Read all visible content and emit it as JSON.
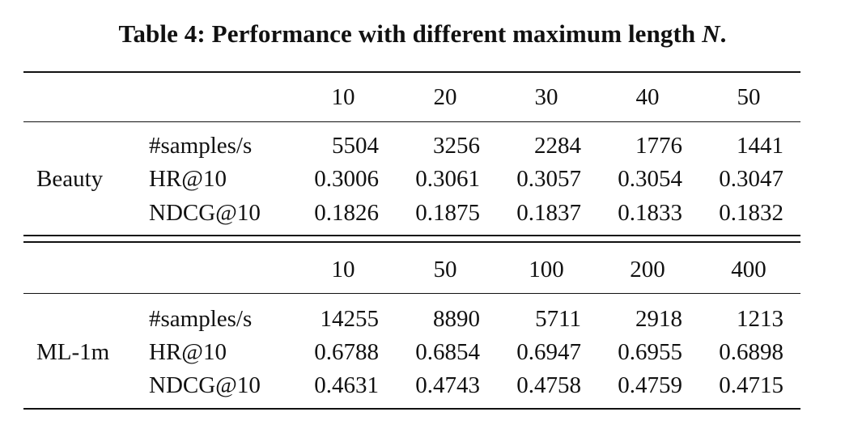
{
  "caption": {
    "prefix": "Table 4: Performance with different maximum length",
    "variable": "N",
    "suffix": "."
  },
  "sections": [
    {
      "dataset": "Beauty",
      "lengths": [
        "10",
        "20",
        "30",
        "40",
        "50"
      ],
      "rows": [
        {
          "metric": "#samples/s",
          "values": [
            "5504",
            "3256",
            "2284",
            "1776",
            "1441"
          ]
        },
        {
          "metric": "HR@10",
          "values": [
            "0.3006",
            "0.3061",
            "0.3057",
            "0.3054",
            "0.3047"
          ]
        },
        {
          "metric": "NDCG@10",
          "values": [
            "0.1826",
            "0.1875",
            "0.1837",
            "0.1833",
            "0.1832"
          ]
        }
      ]
    },
    {
      "dataset": "ML-1m",
      "lengths": [
        "10",
        "50",
        "100",
        "200",
        "400"
      ],
      "rows": [
        {
          "metric": "#samples/s",
          "values": [
            "14255",
            "8890",
            "5711",
            "2918",
            "1213"
          ]
        },
        {
          "metric": "HR@10",
          "values": [
            "0.6788",
            "0.6854",
            "0.6947",
            "0.6955",
            "0.6898"
          ]
        },
        {
          "metric": "NDCG@10",
          "values": [
            "0.4631",
            "0.4743",
            "0.4758",
            "0.4759",
            "0.4715"
          ]
        }
      ]
    }
  ]
}
